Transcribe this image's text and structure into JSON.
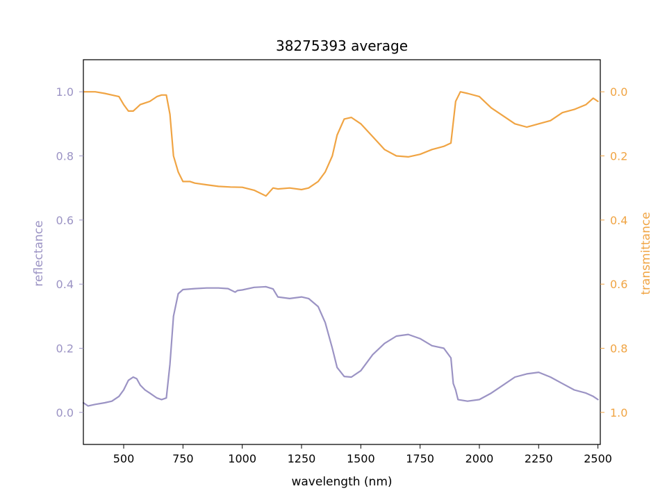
{
  "chart_data": {
    "type": "line",
    "title": "38275393 average",
    "xlabel": "wavelength (nm)",
    "ylabel_left": "reflectance",
    "ylabel_right": "transmittance",
    "xlim": [
      330,
      2510
    ],
    "ylim_left": [
      -0.1,
      1.1
    ],
    "ylim_right": [
      1.1,
      -0.1
    ],
    "right_axis_inverted": true,
    "x_ticks": [
      500,
      750,
      1000,
      1250,
      1500,
      1750,
      2000,
      2250,
      2500
    ],
    "y_ticks_left": [
      0.0,
      0.2,
      0.4,
      0.6,
      0.8,
      1.0
    ],
    "y_ticks_right": [
      0.0,
      0.2,
      0.4,
      0.6,
      0.8,
      1.0
    ],
    "grid": false,
    "legend": "none",
    "series": [
      {
        "axis": "left",
        "color": "#9b93c4",
        "x": [
          330,
          350,
          380,
          420,
          450,
          480,
          500,
          520,
          540,
          555,
          570,
          590,
          610,
          640,
          660,
          680,
          695,
          710,
          730,
          750,
          800,
          850,
          900,
          940,
          970,
          980,
          1000,
          1050,
          1100,
          1130,
          1150,
          1200,
          1250,
          1280,
          1320,
          1350,
          1380,
          1400,
          1430,
          1460,
          1500,
          1550,
          1600,
          1650,
          1700,
          1750,
          1800,
          1850,
          1880,
          1890,
          1900,
          1910,
          1950,
          2000,
          2050,
          2100,
          2150,
          2200,
          2250,
          2300,
          2350,
          2400,
          2450,
          2480,
          2500
        ],
        "y": [
          0.03,
          0.02,
          0.025,
          0.03,
          0.035,
          0.05,
          0.07,
          0.1,
          0.11,
          0.105,
          0.085,
          0.07,
          0.06,
          0.045,
          0.04,
          0.045,
          0.15,
          0.3,
          0.37,
          0.383,
          0.386,
          0.388,
          0.388,
          0.386,
          0.375,
          0.38,
          0.382,
          0.39,
          0.392,
          0.385,
          0.36,
          0.355,
          0.36,
          0.355,
          0.33,
          0.28,
          0.2,
          0.14,
          0.112,
          0.11,
          0.13,
          0.18,
          0.215,
          0.238,
          0.243,
          0.23,
          0.208,
          0.2,
          0.17,
          0.09,
          0.07,
          0.04,
          0.035,
          0.04,
          0.06,
          0.085,
          0.11,
          0.12,
          0.125,
          0.11,
          0.09,
          0.07,
          0.06,
          0.05,
          0.04
        ]
      },
      {
        "axis": "right",
        "color": "#f0a443",
        "x": [
          330,
          350,
          380,
          420,
          450,
          480,
          500,
          520,
          540,
          555,
          570,
          590,
          610,
          640,
          660,
          680,
          695,
          710,
          730,
          750,
          780,
          800,
          850,
          900,
          950,
          1000,
          1050,
          1100,
          1130,
          1150,
          1200,
          1250,
          1280,
          1320,
          1350,
          1380,
          1400,
          1430,
          1460,
          1500,
          1550,
          1600,
          1650,
          1700,
          1750,
          1800,
          1850,
          1880,
          1900,
          1920,
          1950,
          2000,
          2050,
          2100,
          2150,
          2200,
          2250,
          2300,
          2350,
          2400,
          2450,
          2480,
          2500
        ],
        "y": [
          0.0,
          0.0,
          0.0,
          0.005,
          0.01,
          0.015,
          0.04,
          0.06,
          0.06,
          0.05,
          0.04,
          0.035,
          0.03,
          0.015,
          0.01,
          0.01,
          0.07,
          0.2,
          0.25,
          0.28,
          0.28,
          0.285,
          0.29,
          0.295,
          0.297,
          0.298,
          0.307,
          0.325,
          0.3,
          0.303,
          0.3,
          0.305,
          0.3,
          0.28,
          0.25,
          0.2,
          0.135,
          0.085,
          0.08,
          0.1,
          0.14,
          0.18,
          0.2,
          0.203,
          0.195,
          0.18,
          0.17,
          0.16,
          0.03,
          0.0,
          0.005,
          0.015,
          0.05,
          0.075,
          0.1,
          0.11,
          0.1,
          0.09,
          0.065,
          0.055,
          0.04,
          0.02,
          0.03
        ]
      }
    ]
  }
}
